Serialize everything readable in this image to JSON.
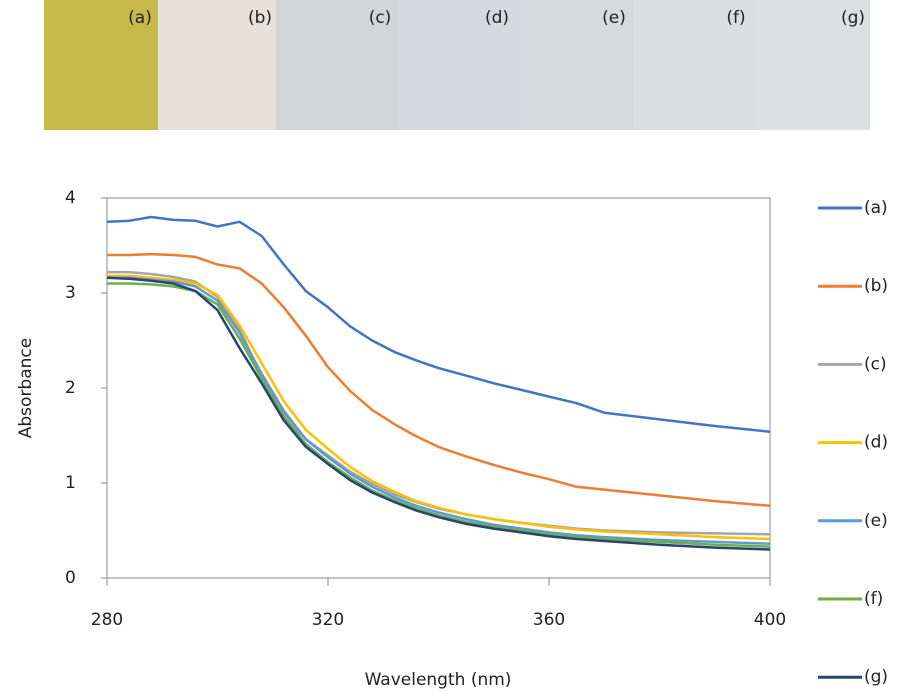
{
  "chart_data": {
    "type": "line",
    "xlabel": "Wavelength (nm)",
    "ylabel": "Absorbance",
    "x": [
      280,
      284,
      288,
      292,
      296,
      300,
      304,
      308,
      312,
      316,
      320,
      324,
      328,
      332,
      336,
      340,
      345,
      350,
      355,
      360,
      365,
      370,
      380,
      390,
      400
    ],
    "series": [
      {
        "name": "(a)",
        "color": "#4472c4",
        "values": [
          3.75,
          3.76,
          3.8,
          3.77,
          3.76,
          3.7,
          3.75,
          3.6,
          3.3,
          3.02,
          2.85,
          2.65,
          2.5,
          2.38,
          2.29,
          2.21,
          2.13,
          2.05,
          1.98,
          1.91,
          1.84,
          1.74,
          1.67,
          1.6,
          1.54
        ]
      },
      {
        "name": "(b)",
        "color": "#ed7d31",
        "values": [
          3.4,
          3.4,
          3.41,
          3.4,
          3.38,
          3.3,
          3.26,
          3.1,
          2.85,
          2.55,
          2.22,
          1.97,
          1.77,
          1.62,
          1.49,
          1.38,
          1.28,
          1.19,
          1.11,
          1.04,
          0.96,
          0.93,
          0.87,
          0.81,
          0.76
        ]
      },
      {
        "name": "(c)",
        "color": "#a5a5a5",
        "values": [
          3.22,
          3.22,
          3.2,
          3.17,
          3.12,
          2.96,
          2.62,
          2.12,
          1.72,
          1.46,
          1.29,
          1.12,
          0.99,
          0.88,
          0.8,
          0.73,
          0.67,
          0.62,
          0.58,
          0.55,
          0.52,
          0.5,
          0.48,
          0.47,
          0.46
        ]
      },
      {
        "name": "(d)",
        "color": "#ffc000",
        "values": [
          3.18,
          3.18,
          3.16,
          3.14,
          3.1,
          2.98,
          2.66,
          2.26,
          1.86,
          1.56,
          1.36,
          1.17,
          1.02,
          0.91,
          0.81,
          0.74,
          0.67,
          0.62,
          0.58,
          0.54,
          0.51,
          0.49,
          0.46,
          0.43,
          0.41
        ]
      },
      {
        "name": "(e)",
        "color": "#5b9bd5",
        "values": [
          3.16,
          3.16,
          3.14,
          3.12,
          3.07,
          2.92,
          2.58,
          2.15,
          1.76,
          1.46,
          1.27,
          1.1,
          0.96,
          0.85,
          0.76,
          0.69,
          0.62,
          0.56,
          0.52,
          0.48,
          0.45,
          0.43,
          0.4,
          0.38,
          0.36
        ]
      },
      {
        "name": "(f)",
        "color": "#70ad47",
        "values": [
          3.1,
          3.1,
          3.09,
          3.07,
          3.02,
          2.88,
          2.52,
          2.1,
          1.7,
          1.41,
          1.22,
          1.06,
          0.92,
          0.82,
          0.73,
          0.66,
          0.59,
          0.54,
          0.5,
          0.46,
          0.43,
          0.41,
          0.38,
          0.35,
          0.33
        ]
      },
      {
        "name": "(g)",
        "color": "#264478",
        "values": [
          3.16,
          3.15,
          3.13,
          3.1,
          3.02,
          2.82,
          2.42,
          2.05,
          1.66,
          1.38,
          1.2,
          1.03,
          0.9,
          0.8,
          0.71,
          0.64,
          0.57,
          0.52,
          0.48,
          0.44,
          0.41,
          0.39,
          0.35,
          0.32,
          0.3
        ]
      }
    ],
    "xlim": [
      280,
      400
    ],
    "ylim": [
      0,
      4
    ],
    "xticks": [
      280,
      320,
      360,
      400
    ],
    "yticks": [
      0,
      1,
      2,
      3,
      4
    ],
    "legend": "right"
  }
}
